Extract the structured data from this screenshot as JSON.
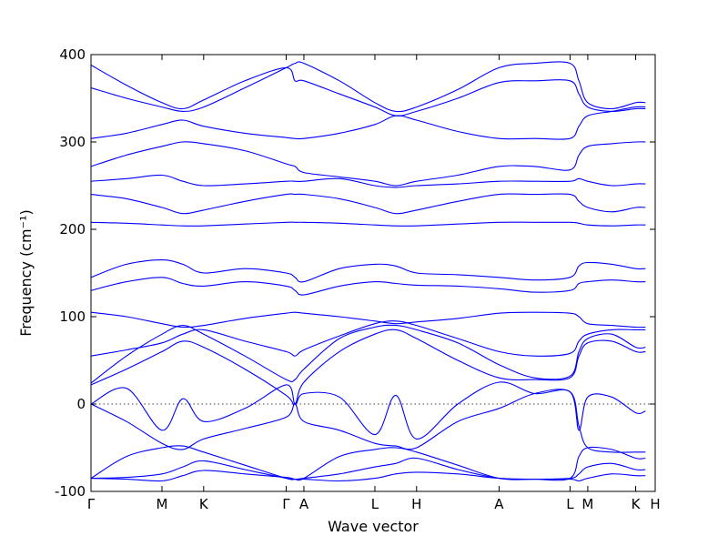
{
  "chart_data": {
    "type": "line",
    "title": "",
    "xlabel": "Wave vector",
    "ylabel": "Frequency (cm⁻¹)",
    "ylim": [
      -100,
      400
    ],
    "yticks": [
      -100,
      0,
      100,
      200,
      300,
      400
    ],
    "zero_line": true,
    "grid": false,
    "color": "#0000ff",
    "xlim": [
      0,
      6.36
    ],
    "kpoints": [
      {
        "label": "Γ",
        "x": 0
      },
      {
        "label": "M",
        "x": 0.8
      },
      {
        "label": "K",
        "x": 1.27
      },
      {
        "label": "Γ",
        "x": 2.2
      },
      {
        "label": "A",
        "x": 2.4
      },
      {
        "label": "L",
        "x": 3.2
      },
      {
        "label": "H",
        "x": 3.67
      },
      {
        "label": "A",
        "x": 4.6
      },
      {
        "label": "L",
        "x": 5.4
      },
      {
        "label": "M",
        "x": 5.6
      },
      {
        "label": "K",
        "x": 6.14
      },
      {
        "label": "H",
        "x": 6.36
      }
    ],
    "series": [
      {
        "values": [
          0,
          18,
          -30,
          6,
          -20,
          -5,
          22,
          0,
          12,
          8,
          -35,
          10,
          -40,
          0,
          25,
          12,
          14,
          -30,
          8,
          8,
          -10,
          -8
        ]
      },
      {
        "values": [
          0,
          -20,
          -45,
          -52,
          -40,
          -28,
          -15,
          0,
          -20,
          -30,
          -45,
          -48,
          -50,
          -20,
          -5,
          12,
          14,
          -25,
          -50,
          -55,
          -55,
          -55
        ]
      },
      {
        "values": [
          -85,
          -60,
          -50,
          -48,
          -55,
          -70,
          -85,
          -86,
          -85,
          -60,
          -52,
          -50,
          -55,
          -70,
          -85,
          -86,
          -85,
          -60,
          -50,
          -52,
          -62,
          -62
        ]
      },
      {
        "values": [
          -85,
          -84,
          -80,
          -72,
          -65,
          -75,
          -85,
          -86,
          -85,
          -80,
          -72,
          -68,
          -62,
          -75,
          -85,
          -86,
          -85,
          -80,
          -72,
          -68,
          -75,
          -75
        ]
      },
      {
        "values": [
          -85,
          -86,
          -88,
          -82,
          -76,
          -80,
          -84,
          -86,
          -86,
          -88,
          -85,
          -80,
          -78,
          -80,
          -85,
          -86,
          -86,
          -88,
          -85,
          -80,
          -82,
          -82
        ]
      },
      {
        "values": [
          22,
          40,
          60,
          72,
          65,
          40,
          10,
          0,
          25,
          60,
          80,
          85,
          75,
          50,
          30,
          28,
          30,
          55,
          70,
          72,
          60,
          60
        ]
      },
      {
        "values": [
          24,
          55,
          80,
          90,
          80,
          55,
          28,
          28,
          40,
          75,
          88,
          90,
          85,
          70,
          45,
          30,
          32,
          60,
          75,
          80,
          65,
          65
        ]
      },
      {
        "values": [
          55,
          62,
          70,
          80,
          85,
          72,
          60,
          55,
          62,
          78,
          92,
          95,
          90,
          75,
          60,
          55,
          58,
          72,
          80,
          85,
          85,
          85
        ]
      },
      {
        "values": [
          105,
          100,
          92,
          88,
          90,
          98,
          104,
          105,
          104,
          100,
          95,
          92,
          94,
          98,
          104,
          105,
          104,
          100,
          92,
          90,
          88,
          88
        ]
      },
      {
        "values": [
          130,
          140,
          145,
          138,
          135,
          140,
          135,
          130,
          125,
          135,
          140,
          138,
          136,
          135,
          132,
          128,
          130,
          138,
          140,
          142,
          140,
          140
        ]
      },
      {
        "values": [
          145,
          160,
          165,
          160,
          150,
          155,
          150,
          145,
          140,
          155,
          160,
          158,
          150,
          148,
          145,
          142,
          145,
          158,
          162,
          160,
          155,
          155
        ]
      },
      {
        "values": [
          208,
          207,
          205,
          204,
          204,
          206,
          208,
          208,
          208,
          207,
          205,
          204,
          204,
          206,
          208,
          208,
          208,
          207,
          205,
          204,
          205,
          205
        ]
      },
      {
        "values": [
          240,
          235,
          225,
          218,
          222,
          232,
          240,
          240,
          240,
          235,
          225,
          218,
          222,
          232,
          240,
          240,
          240,
          232,
          225,
          220,
          225,
          225
        ]
      },
      {
        "values": [
          255,
          258,
          262,
          255,
          250,
          252,
          255,
          255,
          255,
          258,
          250,
          248,
          250,
          252,
          255,
          255,
          255,
          258,
          255,
          250,
          252,
          252
        ]
      },
      {
        "values": [
          272,
          285,
          295,
          300,
          298,
          290,
          275,
          272,
          265,
          260,
          255,
          250,
          255,
          262,
          272,
          272,
          268,
          285,
          295,
          298,
          300,
          300
        ]
      },
      {
        "values": [
          304,
          310,
          320,
          325,
          318,
          310,
          305,
          304,
          304,
          310,
          320,
          330,
          325,
          312,
          304,
          304,
          304,
          318,
          330,
          335,
          340,
          340
        ]
      },
      {
        "values": [
          362,
          350,
          340,
          335,
          340,
          362,
          385,
          390,
          390,
          370,
          345,
          335,
          340,
          360,
          385,
          390,
          390,
          370,
          345,
          338,
          345,
          345
        ]
      },
      {
        "values": [
          388,
          365,
          345,
          338,
          348,
          370,
          385,
          370,
          370,
          355,
          340,
          330,
          335,
          350,
          368,
          370,
          370,
          355,
          340,
          335,
          338,
          338
        ]
      }
    ]
  }
}
